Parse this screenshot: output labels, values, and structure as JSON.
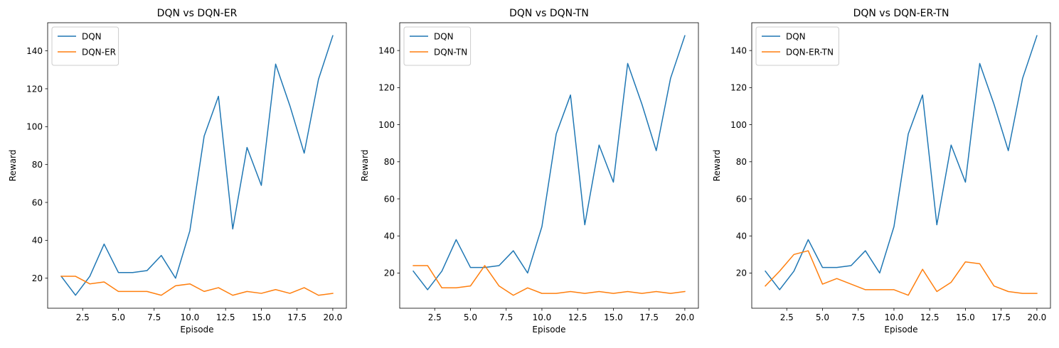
{
  "chart_data": [
    {
      "type": "line",
      "title": "DQN vs DQN-ER",
      "xlabel": "Episode",
      "ylabel": "Reward",
      "xlim": [
        0.05,
        20.95
      ],
      "ylim": [
        4.15,
        154.85
      ],
      "xticks": [
        2.5,
        5.0,
        7.5,
        10.0,
        12.5,
        15.0,
        17.5,
        20.0
      ],
      "xtick_labels": [
        "2.5",
        "5.0",
        "7.5",
        "10.0",
        "12.5",
        "15.0",
        "17.5",
        "20.0"
      ],
      "yticks": [
        20,
        40,
        60,
        80,
        100,
        120,
        140
      ],
      "ytick_labels": [
        "20",
        "40",
        "60",
        "80",
        "100",
        "120",
        "140"
      ],
      "legend_position": "upper-left",
      "grid": false,
      "x": [
        1,
        2,
        3,
        4,
        5,
        6,
        7,
        8,
        9,
        10,
        11,
        12,
        13,
        14,
        15,
        16,
        17,
        18,
        19,
        20
      ],
      "series": [
        {
          "name": "DQN",
          "color": "#1f77b4",
          "values": [
            21,
            11,
            21,
            38,
            23,
            23,
            24,
            32,
            20,
            45,
            95,
            116,
            46,
            89,
            69,
            133,
            111,
            86,
            125,
            148
          ]
        },
        {
          "name": "DQN-ER",
          "color": "#ff7f0e",
          "values": [
            21,
            21,
            17,
            18,
            13,
            13,
            13,
            11,
            16,
            17,
            13,
            15,
            11,
            13,
            12,
            14,
            12,
            15,
            11,
            12
          ]
        }
      ]
    },
    {
      "type": "line",
      "title": "DQN vs DQN-TN",
      "xlabel": "Episode",
      "ylabel": "Reward",
      "xlim": [
        0.05,
        20.95
      ],
      "ylim": [
        1.0,
        155.0
      ],
      "xticks": [
        2.5,
        5.0,
        7.5,
        10.0,
        12.5,
        15.0,
        17.5,
        20.0
      ],
      "xtick_labels": [
        "2.5",
        "5.0",
        "7.5",
        "10.0",
        "12.5",
        "15.0",
        "17.5",
        "20.0"
      ],
      "yticks": [
        20,
        40,
        60,
        80,
        100,
        120,
        140
      ],
      "ytick_labels": [
        "20",
        "40",
        "60",
        "80",
        "100",
        "120",
        "140"
      ],
      "legend_position": "upper-left",
      "grid": false,
      "x": [
        1,
        2,
        3,
        4,
        5,
        6,
        7,
        8,
        9,
        10,
        11,
        12,
        13,
        14,
        15,
        16,
        17,
        18,
        19,
        20
      ],
      "series": [
        {
          "name": "DQN",
          "color": "#1f77b4",
          "values": [
            21,
            11,
            21,
            38,
            23,
            23,
            24,
            32,
            20,
            45,
            95,
            116,
            46,
            89,
            69,
            133,
            111,
            86,
            125,
            148
          ]
        },
        {
          "name": "DQN-TN",
          "color": "#ff7f0e",
          "values": [
            24,
            24,
            12,
            12,
            13,
            24,
            13,
            8,
            12,
            9,
            9,
            10,
            9,
            10,
            9,
            10,
            9,
            10,
            9,
            10
          ]
        }
      ]
    },
    {
      "type": "line",
      "title": "DQN vs DQN-ER-TN",
      "xlabel": "Episode",
      "ylabel": "Reward",
      "xlim": [
        0.05,
        20.95
      ],
      "ylim": [
        1.0,
        155.0
      ],
      "xticks": [
        2.5,
        5.0,
        7.5,
        10.0,
        12.5,
        15.0,
        17.5,
        20.0
      ],
      "xtick_labels": [
        "2.5",
        "5.0",
        "7.5",
        "10.0",
        "12.5",
        "15.0",
        "17.5",
        "20.0"
      ],
      "yticks": [
        20,
        40,
        60,
        80,
        100,
        120,
        140
      ],
      "ytick_labels": [
        "20",
        "40",
        "60",
        "80",
        "100",
        "120",
        "140"
      ],
      "legend_position": "upper-left",
      "grid": false,
      "x": [
        1,
        2,
        3,
        4,
        5,
        6,
        7,
        8,
        9,
        10,
        11,
        12,
        13,
        14,
        15,
        16,
        17,
        18,
        19,
        20
      ],
      "series": [
        {
          "name": "DQN",
          "color": "#1f77b4",
          "values": [
            21,
            11,
            21,
            38,
            23,
            23,
            24,
            32,
            20,
            45,
            95,
            116,
            46,
            89,
            69,
            133,
            111,
            86,
            125,
            148
          ]
        },
        {
          "name": "DQN-ER-TN",
          "color": "#ff7f0e",
          "values": [
            13,
            21,
            30,
            32,
            14,
            17,
            14,
            11,
            11,
            11,
            8,
            22,
            10,
            15,
            26,
            25,
            13,
            10,
            9,
            9
          ]
        }
      ]
    }
  ]
}
